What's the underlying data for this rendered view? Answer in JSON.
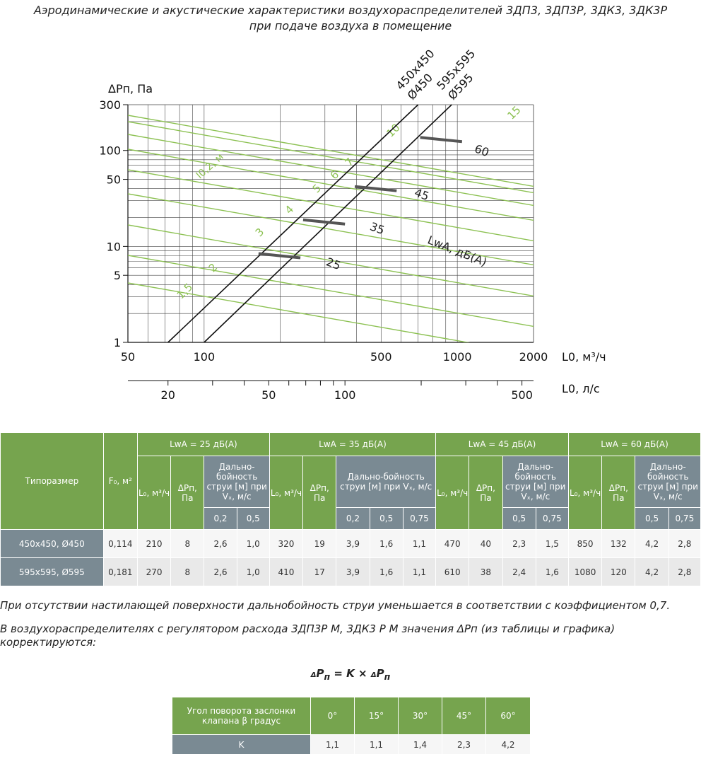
{
  "title_line1": "Аэродинамические и акустические характеристики воздухораспределителей 3ДП3, 3ДП3Р, 3ДК3, 3ДК3Р",
  "title_line2": "при подаче воздуха в помещение",
  "chart_data": {
    "type": "line",
    "x_scale": "log",
    "y_scale": "log",
    "xlim": [
      50,
      2000
    ],
    "ylim": [
      1,
      300
    ],
    "grid": true,
    "ylabel": "ΔPп, Па",
    "xlabel": "L0, м³/ч",
    "x2label": "L0, л/с",
    "x_ticks": [
      50,
      100,
      500,
      1000,
      2000
    ],
    "x2_ticks": [
      20,
      50,
      100,
      500
    ],
    "y_ticks": [
      1,
      5,
      10,
      50,
      100,
      300
    ],
    "device_lines": [
      {
        "name": "450x450 Ø450",
        "x": [
          72,
          700
        ],
        "y": [
          1,
          300
        ]
      },
      {
        "name": "595x595 Ø595",
        "x": [
          100,
          950
        ],
        "y": [
          1,
          300
        ]
      }
    ],
    "throw_lines": {
      "label": "l0,2, м",
      "values": [
        "1,5",
        "2",
        "3",
        "4",
        "5",
        "6",
        "7",
        "10",
        "15"
      ]
    },
    "noise_markers": {
      "label": "LwA, дБ(А)",
      "items": [
        {
          "value": "25",
          "x": 200,
          "y": 8
        },
        {
          "value": "35",
          "x": 300,
          "y": 18
        },
        {
          "value": "45",
          "x": 480,
          "y": 40
        },
        {
          "value": "60",
          "x": 870,
          "y": 130
        }
      ]
    }
  },
  "table": {
    "type_header": "Типоразмер",
    "area_header": "F₀, м²",
    "groups": [
      "LwA = 25 дБ(А)",
      "LwA = 35 дБ(А)",
      "LwA = 45 дБ(А)",
      "LwA = 60 дБ(А)"
    ],
    "l_header": "L₀, м³/ч",
    "dp_header": "ΔPп, Па",
    "range_header": "Дально-бойность струи [м] при Vₓ, м/с",
    "subcols": [
      [
        "0,2",
        "0,5"
      ],
      [
        "0,2",
        "0,5",
        "0,75"
      ],
      [
        "0,5",
        "0,75"
      ],
      [
        "0,5",
        "0,75"
      ]
    ],
    "rows": [
      {
        "name": "450x450, Ø450",
        "area": "0,114",
        "cells": [
          "210",
          "8",
          "2,6",
          "1,0",
          "320",
          "19",
          "3,9",
          "1,6",
          "1,1",
          "470",
          "40",
          "2,3",
          "1,5",
          "850",
          "132",
          "4,2",
          "2,8"
        ]
      },
      {
        "name": "595x595, Ø595",
        "area": "0,181",
        "cells": [
          "270",
          "8",
          "2,6",
          "1,0",
          "410",
          "17",
          "3,9",
          "1,6",
          "1,1",
          "610",
          "38",
          "2,4",
          "1,6",
          "1080",
          "120",
          "4,2",
          "2,8"
        ]
      }
    ]
  },
  "note1": "При отсутствии настилающей поверхности дальнобойность струи уменьшается в соответствии с коэффициентом 0,7.",
  "note2": "В воздухораспределителях с регулятором расхода 3ДП3Р М, 3ДК3 Р М значения ΔРп (из таблицы и графика) корректируются:",
  "formula": {
    "delta": "Δ",
    "lhs": "P",
    "sub": "п",
    "mid": " = K × "
  },
  "k_table": {
    "header": "Угол поворота заслонки клапана β градус",
    "angles": [
      "0°",
      "15°",
      "30°",
      "45°",
      "60°"
    ],
    "row_label": "K",
    "values": [
      "1,1",
      "1,1",
      "1,4",
      "2,3",
      "4,2"
    ]
  },
  "colors": {
    "green": "#76a44e",
    "slate": "#7a8a93",
    "curve": "#8cc152",
    "grid": "#444444"
  }
}
